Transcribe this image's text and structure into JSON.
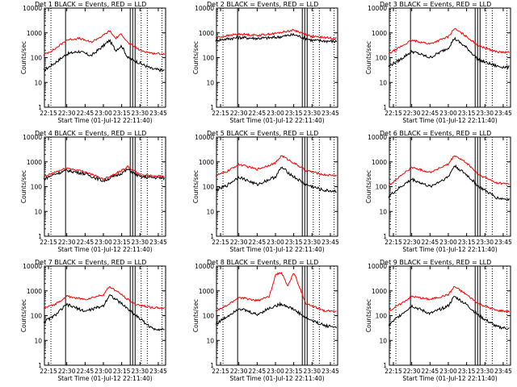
{
  "figure": {
    "xlabel": "Start Time (01-Jul-12 22:11:40)",
    "ylabel": "Counts/sec",
    "x_ticks": [
      "22:15",
      "22:30",
      "22:45",
      "23:00",
      "23:15",
      "23:30",
      "23:45"
    ],
    "y_ticks": [
      "1",
      "10",
      "100",
      "1000",
      "10000"
    ],
    "colors": {
      "events": "#000000",
      "lld": "#ff0000"
    }
  },
  "chart_data": [
    {
      "type": "line",
      "title": "Det 1 BLACK = Events, RED = LLD",
      "x_range_minutes": [
        "22:11:40",
        "23:51:00"
      ],
      "ylim": [
        1,
        10000
      ],
      "yscale": "log",
      "series": [
        {
          "name": "Events",
          "color": "#000000",
          "points": [
            [
              "22:11",
              30
            ],
            [
              "22:20",
              60
            ],
            [
              "22:30",
              140
            ],
            [
              "22:40",
              180
            ],
            [
              "22:50",
              120
            ],
            [
              "23:00",
              300
            ],
            [
              "23:05",
              500
            ],
            [
              "23:10",
              200
            ],
            [
              "23:15",
              300
            ],
            [
              "23:20",
              100
            ],
            [
              "23:30",
              60
            ],
            [
              "23:40",
              35
            ],
            [
              "23:50",
              30
            ]
          ]
        },
        {
          "name": "LLD",
          "color": "#ff0000",
          "points": [
            [
              "22:11",
              130
            ],
            [
              "22:20",
              220
            ],
            [
              "22:30",
              520
            ],
            [
              "22:40",
              600
            ],
            [
              "22:50",
              420
            ],
            [
              "23:00",
              800
            ],
            [
              "23:05",
              1200
            ],
            [
              "23:10",
              600
            ],
            [
              "23:15",
              900
            ],
            [
              "23:20",
              400
            ],
            [
              "23:30",
              200
            ],
            [
              "23:40",
              150
            ],
            [
              "23:50",
              140
            ]
          ]
        }
      ]
    },
    {
      "type": "line",
      "title": "Det 2 BLACK = Events, RED = LLD",
      "x_range_minutes": [
        "22:11:40",
        "23:51:00"
      ],
      "ylim": [
        1,
        10000
      ],
      "yscale": "log",
      "series": [
        {
          "name": "Events",
          "color": "#000000",
          "points": [
            [
              "22:11",
              500
            ],
            [
              "22:30",
              650
            ],
            [
              "22:45",
              600
            ],
            [
              "23:00",
              650
            ],
            [
              "23:15",
              850
            ],
            [
              "23:30",
              500
            ],
            [
              "23:50",
              450
            ]
          ]
        },
        {
          "name": "LLD",
          "color": "#ff0000",
          "points": [
            [
              "22:11",
              650
            ],
            [
              "22:30",
              900
            ],
            [
              "22:45",
              800
            ],
            [
              "23:00",
              950
            ],
            [
              "23:15",
              1300
            ],
            [
              "23:30",
              700
            ],
            [
              "23:50",
              600
            ]
          ]
        }
      ]
    },
    {
      "type": "line",
      "title": "Det 3 BLACK = Events, RED = LLD",
      "x_range_minutes": [
        "22:11:40",
        "23:51:00"
      ],
      "ylim": [
        1,
        10000
      ],
      "yscale": "log",
      "series": [
        {
          "name": "Events",
          "color": "#000000",
          "points": [
            [
              "22:11",
              45
            ],
            [
              "22:20",
              80
            ],
            [
              "22:30",
              180
            ],
            [
              "22:45",
              100
            ],
            [
              "23:00",
              250
            ],
            [
              "23:05",
              600
            ],
            [
              "23:15",
              250
            ],
            [
              "23:25",
              80
            ],
            [
              "23:40",
              45
            ],
            [
              "23:50",
              40
            ]
          ]
        },
        {
          "name": "LLD",
          "color": "#ff0000",
          "points": [
            [
              "22:11",
              140
            ],
            [
              "22:20",
              260
            ],
            [
              "22:30",
              500
            ],
            [
              "22:45",
              360
            ],
            [
              "23:00",
              700
            ],
            [
              "23:05",
              1500
            ],
            [
              "23:15",
              700
            ],
            [
              "23:25",
              300
            ],
            [
              "23:40",
              170
            ],
            [
              "23:50",
              160
            ]
          ]
        }
      ]
    },
    {
      "type": "line",
      "title": "Det 4 BLACK = Events, RED = LLD",
      "x_range_minutes": [
        "22:11:40",
        "23:51:00"
      ],
      "ylim": [
        1,
        10000
      ],
      "yscale": "log",
      "series": [
        {
          "name": "Events",
          "color": "#000000",
          "points": [
            [
              "22:11",
              200
            ],
            [
              "22:20",
              320
            ],
            [
              "22:30",
              450
            ],
            [
              "22:45",
              330
            ],
            [
              "23:00",
              170
            ],
            [
              "23:15",
              350
            ],
            [
              "23:20",
              500
            ],
            [
              "23:30",
              250
            ],
            [
              "23:50",
              220
            ]
          ]
        },
        {
          "name": "LLD",
          "color": "#ff0000",
          "points": [
            [
              "22:11",
              240
            ],
            [
              "22:20",
              380
            ],
            [
              "22:30",
              560
            ],
            [
              "22:45",
              400
            ],
            [
              "23:00",
              200
            ],
            [
              "23:15",
              450
            ],
            [
              "23:20",
              650
            ],
            [
              "23:30",
              300
            ],
            [
              "23:50",
              260
            ]
          ]
        }
      ]
    },
    {
      "type": "line",
      "title": "Det 5 BLACK = Events, RED = LLD",
      "x_range_minutes": [
        "22:11:40",
        "23:51:00"
      ],
      "ylim": [
        1,
        10000
      ],
      "yscale": "log",
      "series": [
        {
          "name": "Events",
          "color": "#000000",
          "points": [
            [
              "22:11",
              70
            ],
            [
              "22:20",
              110
            ],
            [
              "22:30",
              250
            ],
            [
              "22:45",
              120
            ],
            [
              "23:00",
              250
            ],
            [
              "23:05",
              600
            ],
            [
              "23:15",
              250
            ],
            [
              "23:25",
              120
            ],
            [
              "23:40",
              70
            ],
            [
              "23:50",
              65
            ]
          ]
        },
        {
          "name": "LLD",
          "color": "#ff0000",
          "points": [
            [
              "22:11",
              280
            ],
            [
              "22:20",
              400
            ],
            [
              "22:30",
              800
            ],
            [
              "22:45",
              500
            ],
            [
              "23:00",
              900
            ],
            [
              "23:05",
              1800
            ],
            [
              "23:15",
              900
            ],
            [
              "23:25",
              450
            ],
            [
              "23:40",
              300
            ],
            [
              "23:50",
              280
            ]
          ]
        }
      ]
    },
    {
      "type": "line",
      "title": "Det 6 BLACK = Events, RED = LLD",
      "x_range_minutes": [
        "22:11:40",
        "23:51:00"
      ],
      "ylim": [
        1,
        10000
      ],
      "yscale": "log",
      "series": [
        {
          "name": "Events",
          "color": "#000000",
          "points": [
            [
              "22:11",
              40
            ],
            [
              "22:20",
              90
            ],
            [
              "22:30",
              200
            ],
            [
              "22:45",
              100
            ],
            [
              "23:00",
              250
            ],
            [
              "23:05",
              700
            ],
            [
              "23:15",
              300
            ],
            [
              "23:25",
              100
            ],
            [
              "23:40",
              35
            ],
            [
              "23:50",
              30
            ]
          ]
        },
        {
          "name": "LLD",
          "color": "#ff0000",
          "points": [
            [
              "22:11",
              110
            ],
            [
              "22:20",
              250
            ],
            [
              "22:30",
              600
            ],
            [
              "22:45",
              380
            ],
            [
              "23:00",
              800
            ],
            [
              "23:05",
              1800
            ],
            [
              "23:15",
              900
            ],
            [
              "23:25",
              300
            ],
            [
              "23:40",
              140
            ],
            [
              "23:50",
              130
            ]
          ]
        }
      ]
    },
    {
      "type": "line",
      "title": "Det 7 BLACK = Events, RED = LLD",
      "x_range_minutes": [
        "22:11:40",
        "23:51:00"
      ],
      "ylim": [
        1,
        10000
      ],
      "yscale": "log",
      "series": [
        {
          "name": "Events",
          "color": "#000000",
          "points": [
            [
              "22:11",
              55
            ],
            [
              "22:20",
              100
            ],
            [
              "22:30",
              280
            ],
            [
              "22:45",
              150
            ],
            [
              "23:00",
              250
            ],
            [
              "23:05",
              700
            ],
            [
              "23:15",
              300
            ],
            [
              "23:25",
              120
            ],
            [
              "23:40",
              30
            ],
            [
              "23:50",
              28
            ]
          ]
        },
        {
          "name": "LLD",
          "color": "#ff0000",
          "points": [
            [
              "22:11",
              200
            ],
            [
              "22:20",
              280
            ],
            [
              "22:30",
              600
            ],
            [
              "22:45",
              450
            ],
            [
              "23:00",
              700
            ],
            [
              "23:05",
              1500
            ],
            [
              "23:15",
              700
            ],
            [
              "23:25",
              300
            ],
            [
              "23:40",
              210
            ],
            [
              "23:50",
              200
            ]
          ]
        }
      ]
    },
    {
      "type": "line",
      "title": "Det 8 BLACK = Events, RED = LLD",
      "x_range_minutes": [
        "22:11:40",
        "23:51:00"
      ],
      "ylim": [
        1,
        10000
      ],
      "yscale": "log",
      "series": [
        {
          "name": "Events",
          "color": "#000000",
          "points": [
            [
              "22:11",
              45
            ],
            [
              "22:20",
              90
            ],
            [
              "22:30",
              200
            ],
            [
              "22:45",
              110
            ],
            [
              "22:55",
              200
            ],
            [
              "23:05",
              300
            ],
            [
              "23:15",
              180
            ],
            [
              "23:25",
              80
            ],
            [
              "23:40",
              40
            ],
            [
              "23:50",
              35
            ]
          ]
        },
        {
          "name": "LLD",
          "color": "#ff0000",
          "points": [
            [
              "22:11",
              150
            ],
            [
              "22:20",
              250
            ],
            [
              "22:30",
              550
            ],
            [
              "22:45",
              400
            ],
            [
              "22:55",
              600
            ],
            [
              "23:00",
              4500
            ],
            [
              "23:05",
              5500
            ],
            [
              "23:10",
              1500
            ],
            [
              "23:15",
              5500
            ],
            [
              "23:25",
              300
            ],
            [
              "23:40",
              160
            ],
            [
              "23:50",
              150
            ]
          ]
        }
      ]
    },
    {
      "type": "line",
      "title": "Det 9 BLACK = Events, RED = LLD",
      "x_range_minutes": [
        "22:11:40",
        "23:51:00"
      ],
      "ylim": [
        1,
        10000
      ],
      "yscale": "log",
      "series": [
        {
          "name": "Events",
          "color": "#000000",
          "points": [
            [
              "22:11",
              40
            ],
            [
              "22:20",
              100
            ],
            [
              "22:30",
              250
            ],
            [
              "22:45",
              120
            ],
            [
              "23:00",
              250
            ],
            [
              "23:05",
              600
            ],
            [
              "23:15",
              280
            ],
            [
              "23:25",
              100
            ],
            [
              "23:40",
              35
            ],
            [
              "23:50",
              30
            ]
          ]
        },
        {
          "name": "LLD",
          "color": "#ff0000",
          "points": [
            [
              "22:11",
              150
            ],
            [
              "22:20",
              280
            ],
            [
              "22:30",
              600
            ],
            [
              "22:45",
              450
            ],
            [
              "23:00",
              700
            ],
            [
              "23:05",
              1500
            ],
            [
              "23:15",
              700
            ],
            [
              "23:25",
              300
            ],
            [
              "23:40",
              160
            ],
            [
              "23:50",
              150
            ]
          ]
        }
      ]
    }
  ]
}
